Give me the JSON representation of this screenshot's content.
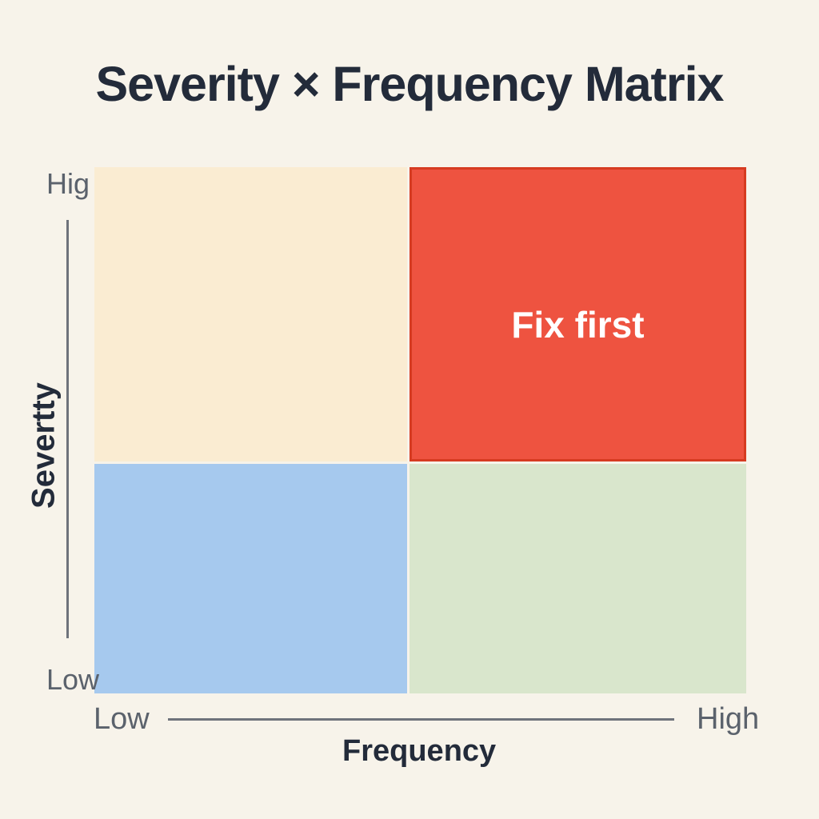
{
  "title": "Severity × Frequency Matrix",
  "colors": {
    "background": "#f7f3ea",
    "text_dark": "#232b3a",
    "text_gray": "#5b626c",
    "axis_line": "#6e737b",
    "red_border": "#d63b21"
  },
  "y_axis": {
    "title": "Severtty",
    "top_label": "Hig",
    "bottom_label": "Low"
  },
  "x_axis": {
    "title": "Frequency",
    "left_label": "Low",
    "right_label": "High"
  },
  "quadrants": {
    "top_left": {
      "meaning": "high severity / low frequency",
      "color": "#faecd2",
      "label": ""
    },
    "top_right": {
      "meaning": "high severity / high frequency",
      "color": "#ee5340",
      "border_color": "#d63b21",
      "label": "Fix first",
      "label_color": "#ffffff"
    },
    "bottom_left": {
      "meaning": "low severity / low frequency",
      "color": "#a6c9ee",
      "label": ""
    },
    "bottom_right": {
      "meaning": "low severity / high frequency",
      "color": "#d9e6cc",
      "label": ""
    }
  }
}
